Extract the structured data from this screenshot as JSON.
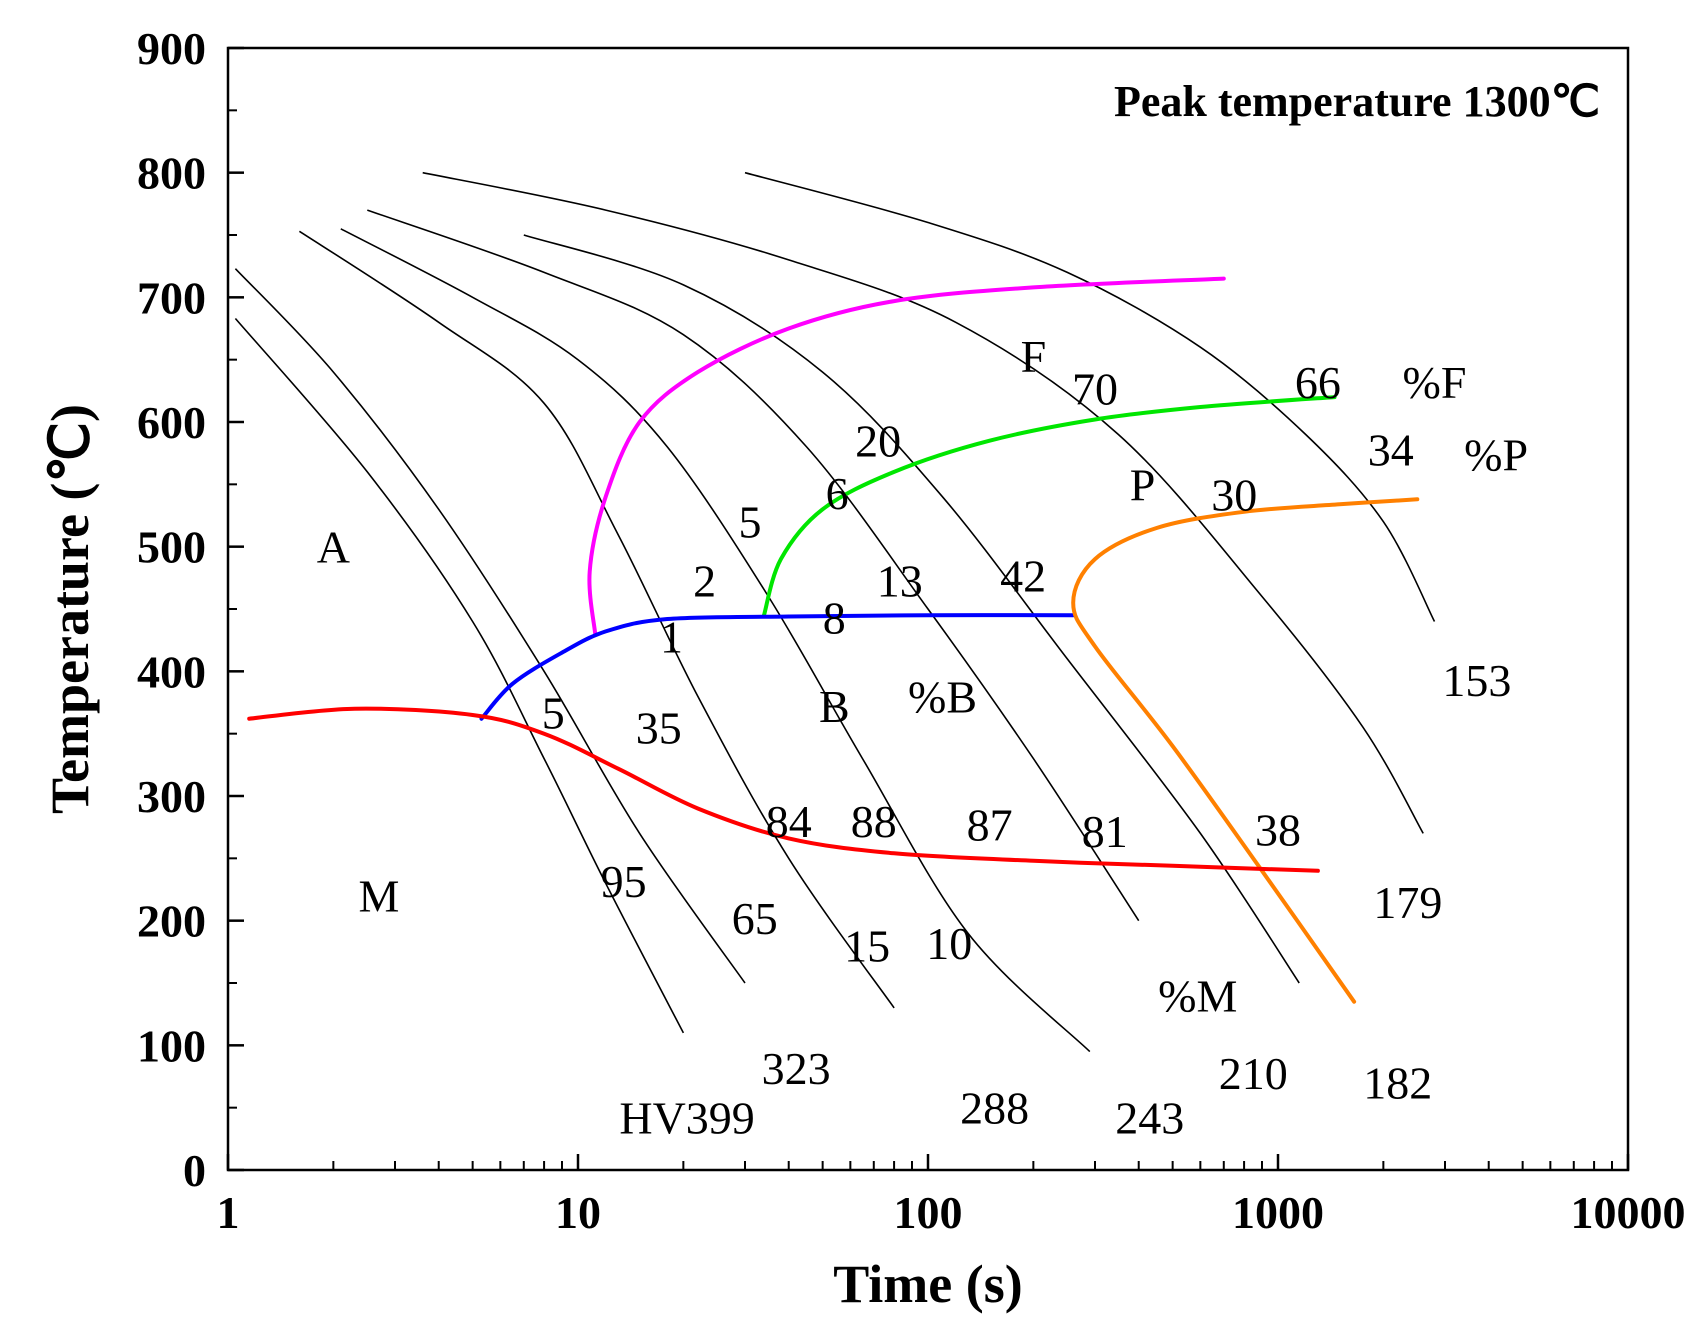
{
  "chart_data": {
    "type": "line",
    "title": "Peak temperature 1300℃",
    "xlabel": "Time (s)",
    "ylabel": "Temperature (℃)",
    "x_scale": "log",
    "xlim": [
      1,
      10000
    ],
    "ylim": [
      0,
      900
    ],
    "x_ticks": [
      1,
      10,
      100,
      1000,
      10000
    ],
    "x_tick_labels": [
      "1",
      "10",
      "100",
      "1000",
      "10000"
    ],
    "y_ticks": [
      0,
      100,
      200,
      300,
      400,
      500,
      600,
      700,
      800,
      900
    ],
    "y_tick_labels": [
      "0",
      "100",
      "200",
      "300",
      "400",
      "500",
      "600",
      "700",
      "800",
      "900"
    ],
    "grid": false,
    "series": [
      {
        "color": "#ff00ff",
        "points": [
          [
            11.2,
            430
          ],
          [
            10.8,
            480
          ],
          [
            12,
            540
          ],
          [
            15,
            600
          ],
          [
            22,
            640
          ],
          [
            40,
            675
          ],
          [
            80,
            697
          ],
          [
            200,
            708
          ],
          [
            700,
            715
          ]
        ]
      },
      {
        "color": "#00e600",
        "points": [
          [
            34,
            445
          ],
          [
            38,
            490
          ],
          [
            50,
            530
          ],
          [
            80,
            560
          ],
          [
            150,
            585
          ],
          [
            300,
            602
          ],
          [
            600,
            612
          ],
          [
            1450,
            620
          ]
        ]
      },
      {
        "color": "#0000ff",
        "points": [
          [
            5.3,
            362
          ],
          [
            6.5,
            390
          ],
          [
            9,
            415
          ],
          [
            12,
            432
          ],
          [
            18,
            442
          ],
          [
            40,
            444
          ],
          [
            100,
            445
          ],
          [
            260,
            445
          ]
        ]
      },
      {
        "color": "#ff8000",
        "points": [
          [
            2500,
            538
          ],
          [
            1500,
            534
          ],
          [
            800,
            528
          ],
          [
            450,
            515
          ],
          [
            300,
            490
          ],
          [
            260,
            455
          ],
          [
            300,
            420
          ],
          [
            500,
            340
          ],
          [
            900,
            240
          ],
          [
            1650,
            135
          ]
        ]
      },
      {
        "color": "#ff0000",
        "points": [
          [
            1.15,
            362
          ],
          [
            2.3,
            370
          ],
          [
            5,
            365
          ],
          [
            8,
            350
          ],
          [
            13,
            322
          ],
          [
            22,
            290
          ],
          [
            40,
            266
          ],
          [
            80,
            254
          ],
          [
            200,
            248
          ],
          [
            500,
            244
          ],
          [
            1300,
            240
          ]
        ]
      }
    ],
    "cooling_curves": [
      {
        "points": [
          [
            1.05,
            683
          ],
          [
            2.5,
            560
          ],
          [
            5,
            440
          ],
          [
            8,
            330
          ],
          [
            12,
            230
          ],
          [
            20,
            110
          ]
        ]
      },
      {
        "points": [
          [
            1.05,
            723
          ],
          [
            2,
            640
          ],
          [
            4,
            530
          ],
          [
            8,
            400
          ],
          [
            15,
            270
          ],
          [
            30,
            150
          ]
        ]
      },
      {
        "points": [
          [
            1.6,
            753
          ],
          [
            4,
            680
          ],
          [
            8,
            615
          ],
          [
            13,
            510
          ],
          [
            22,
            380
          ],
          [
            40,
            250
          ],
          [
            80,
            130
          ]
        ]
      },
      {
        "points": [
          [
            2.1,
            755
          ],
          [
            5,
            700
          ],
          [
            10,
            650
          ],
          [
            18,
            580
          ],
          [
            35,
            460
          ],
          [
            65,
            330
          ],
          [
            130,
            190
          ],
          [
            290,
            95
          ]
        ]
      },
      {
        "points": [
          [
            2.5,
            770
          ],
          [
            8,
            720
          ],
          [
            20,
            670
          ],
          [
            45,
            580
          ],
          [
            100,
            450
          ],
          [
            200,
            330
          ],
          [
            400,
            200
          ]
        ]
      },
      {
        "points": [
          [
            7,
            750
          ],
          [
            20,
            710
          ],
          [
            50,
            640
          ],
          [
            110,
            540
          ],
          [
            250,
            410
          ],
          [
            600,
            270
          ],
          [
            1150,
            150
          ]
        ]
      },
      {
        "points": [
          [
            3.6,
            800
          ],
          [
            12,
            770
          ],
          [
            40,
            730
          ],
          [
            120,
            680
          ],
          [
            350,
            590
          ],
          [
            900,
            460
          ],
          [
            1750,
            355
          ],
          [
            2600,
            270
          ]
        ]
      },
      {
        "points": [
          [
            30,
            800
          ],
          [
            100,
            760
          ],
          [
            250,
            720
          ],
          [
            600,
            660
          ],
          [
            1200,
            590
          ],
          [
            2000,
            520
          ],
          [
            2800,
            440
          ]
        ]
      }
    ],
    "annotations": [
      {
        "text": "A",
        "x": 2.0,
        "y": 500
      },
      {
        "text": "M",
        "x": 2.7,
        "y": 220
      },
      {
        "text": "F",
        "x": 200,
        "y": 653
      },
      {
        "text": "70",
        "x": 300,
        "y": 627
      },
      {
        "text": "66",
        "x": 1300,
        "y": 632
      },
      {
        "text": "%F",
        "x": 2800,
        "y": 632
      },
      {
        "text": "20",
        "x": 72,
        "y": 585
      },
      {
        "text": "P",
        "x": 410,
        "y": 550
      },
      {
        "text": "30",
        "x": 750,
        "y": 542
      },
      {
        "text": "34",
        "x": 2100,
        "y": 578
      },
      {
        "text": "%P",
        "x": 4200,
        "y": 574
      },
      {
        "text": "6",
        "x": 55,
        "y": 543
      },
      {
        "text": "5",
        "x": 31,
        "y": 520
      },
      {
        "text": "2",
        "x": 23,
        "y": 473
      },
      {
        "text": "13",
        "x": 83,
        "y": 473
      },
      {
        "text": "42",
        "x": 187,
        "y": 477
      },
      {
        "text": "8",
        "x": 54,
        "y": 443
      },
      {
        "text": "1",
        "x": 18.5,
        "y": 428
      },
      {
        "text": "B",
        "x": 54,
        "y": 372
      },
      {
        "text": "%B",
        "x": 110,
        "y": 380
      },
      {
        "text": "153",
        "x": 3700,
        "y": 393
      },
      {
        "text": "5",
        "x": 8.5,
        "y": 367
      },
      {
        "text": "35",
        "x": 17,
        "y": 355
      },
      {
        "text": "84",
        "x": 40,
        "y": 280
      },
      {
        "text": "88",
        "x": 70,
        "y": 280
      },
      {
        "text": "87",
        "x": 150,
        "y": 277
      },
      {
        "text": "81",
        "x": 320,
        "y": 272
      },
      {
        "text": "38",
        "x": 1000,
        "y": 273
      },
      {
        "text": "95",
        "x": 13.5,
        "y": 232
      },
      {
        "text": "179",
        "x": 2350,
        "y": 215
      },
      {
        "text": "65",
        "x": 32,
        "y": 202
      },
      {
        "text": "15",
        "x": 67,
        "y": 180
      },
      {
        "text": "10",
        "x": 115,
        "y": 182
      },
      {
        "text": "%M",
        "x": 590,
        "y": 140
      },
      {
        "text": "323",
        "x": 42,
        "y": 82
      },
      {
        "text": "210",
        "x": 850,
        "y": 78
      },
      {
        "text": "182",
        "x": 2200,
        "y": 70
      },
      {
        "text": "288",
        "x": 155,
        "y": 50
      },
      {
        "text": "243",
        "x": 430,
        "y": 42
      },
      {
        "text": "HV399",
        "x": 20.5,
        "y": 42
      }
    ]
  }
}
